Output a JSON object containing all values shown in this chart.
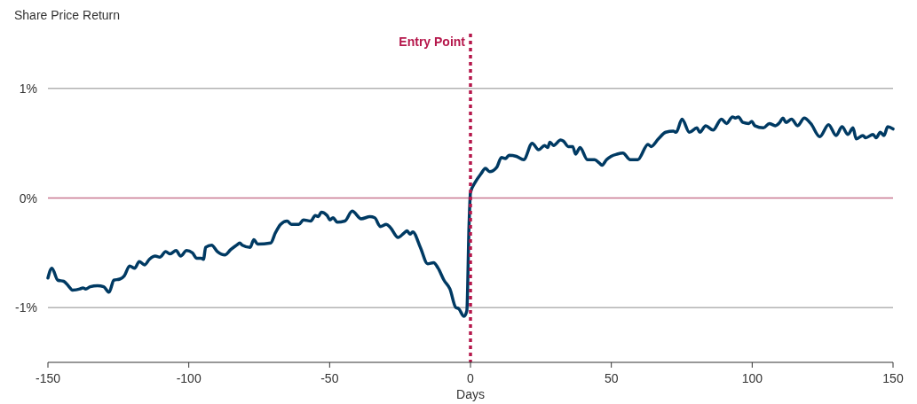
{
  "chart_data": {
    "type": "line",
    "ylabel": "Share Price Return",
    "xlabel": "Days",
    "xlim": [
      -150,
      150
    ],
    "xticks": [
      -150,
      -100,
      -50,
      0,
      50,
      100,
      150
    ],
    "ylim": [
      -1.5,
      1.5
    ],
    "yticks": [
      {
        "value": -1,
        "label": "-1%"
      },
      {
        "value": 0,
        "label": "0%"
      },
      {
        "value": 1,
        "label": "1%"
      }
    ],
    "grid": "y",
    "marker": "none",
    "line_style": "solid",
    "ref_lines": [
      {
        "axis": "x",
        "value": 0,
        "label": "Entry Point",
        "color": "#b5174b",
        "line_style": "dotted"
      },
      {
        "axis": "y",
        "value": 0,
        "label": null,
        "color": "#c87890",
        "line_style": "solid"
      }
    ],
    "series": [
      {
        "color": "#003a63",
        "x": [
          -150,
          -148.6,
          -146.5,
          -144.4,
          -142.8,
          -141.3,
          -138.7,
          -137.6,
          -136.6,
          -135,
          -132.4,
          -130.2,
          -128.3,
          -126.6,
          -124.5,
          -122.9,
          -121,
          -119.2,
          -117.6,
          -115.7,
          -114,
          -111.9,
          -110.3,
          -108.2,
          -106.6,
          -104.5,
          -102.9,
          -100.8,
          -98.7,
          -97.2,
          -95.6,
          -94.8,
          -94,
          -91.9,
          -89.8,
          -87.2,
          -85.1,
          -83,
          -81.9,
          -81,
          -78.2,
          -76.9,
          -75.6,
          -70.9,
          -69.3,
          -67.4,
          -65.1,
          -63.6,
          -60.9,
          -59.3,
          -56.7,
          -55.1,
          -54,
          -53,
          -50.9,
          -49.9,
          -48.8,
          -47.3,
          -44.6,
          -42,
          -38.8,
          -35.7,
          -34,
          -32,
          -29.9,
          -28.4,
          -25.7,
          -23.6,
          -22.5,
          -21.5,
          -20.5,
          -17.8,
          -15.2,
          -13.1,
          -11.5,
          -9.4,
          -7.3,
          -5.2,
          -4.2,
          -2.3,
          -1.3,
          -0.5,
          0,
          1.6,
          3.7,
          5.3,
          6.8,
          9.3,
          11,
          12.4,
          13.7,
          16.3,
          18.9,
          21.9,
          24.2,
          26.3,
          27.4,
          28.2,
          29.5,
          32,
          33,
          34.7,
          36.3,
          37.3,
          38.9,
          41.5,
          44.1,
          45.7,
          46.7,
          48.3,
          49.9,
          52,
          54.1,
          56.7,
          59.4,
          63,
          64.1,
          66.7,
          69.3,
          72,
          73,
          75.1,
          77.7,
          80.4,
          81.4,
          83.5,
          86.1,
          89.1,
          90.9,
          93,
          94,
          95.1,
          96.7,
          98.8,
          99.9,
          100.9,
          104,
          106.1,
          108.2,
          109.8,
          110.9,
          112,
          114,
          116.1,
          118.5,
          120.8,
          124,
          127.1,
          129.8,
          131.9,
          134,
          135.8,
          136.9,
          139.3,
          140.3,
          142.9,
          144,
          145.5,
          146.8,
          148.1,
          150
        ],
        "values": [
          -0.73,
          -0.64,
          -0.75,
          -0.76,
          -0.8,
          -0.84,
          -0.83,
          -0.82,
          -0.83,
          -0.81,
          -0.8,
          -0.81,
          -0.86,
          -0.75,
          -0.74,
          -0.71,
          -0.62,
          -0.64,
          -0.58,
          -0.61,
          -0.56,
          -0.53,
          -0.54,
          -0.49,
          -0.51,
          -0.48,
          -0.53,
          -0.48,
          -0.5,
          -0.55,
          -0.55,
          -0.56,
          -0.45,
          -0.43,
          -0.49,
          -0.52,
          -0.47,
          -0.43,
          -0.41,
          -0.43,
          -0.45,
          -0.38,
          -0.42,
          -0.41,
          -0.32,
          -0.24,
          -0.21,
          -0.24,
          -0.24,
          -0.2,
          -0.21,
          -0.16,
          -0.17,
          -0.13,
          -0.16,
          -0.2,
          -0.18,
          -0.22,
          -0.21,
          -0.12,
          -0.19,
          -0.17,
          -0.18,
          -0.26,
          -0.24,
          -0.27,
          -0.36,
          -0.32,
          -0.3,
          -0.33,
          -0.31,
          -0.45,
          -0.6,
          -0.59,
          -0.64,
          -0.75,
          -0.83,
          -1,
          -1.01,
          -1.08,
          -1.03,
          -0.24,
          0.05,
          0.14,
          0.22,
          0.27,
          0.24,
          0.28,
          0.37,
          0.36,
          0.39,
          0.38,
          0.35,
          0.5,
          0.44,
          0.48,
          0.46,
          0.51,
          0.48,
          0.53,
          0.52,
          0.47,
          0.47,
          0.4,
          0.46,
          0.35,
          0.35,
          0.32,
          0.3,
          0.35,
          0.38,
          0.4,
          0.41,
          0.35,
          0.35,
          0.49,
          0.47,
          0.54,
          0.6,
          0.61,
          0.6,
          0.72,
          0.6,
          0.64,
          0.6,
          0.66,
          0.62,
          0.72,
          0.68,
          0.74,
          0.73,
          0.74,
          0.69,
          0.68,
          0.7,
          0.66,
          0.64,
          0.68,
          0.66,
          0.69,
          0.73,
          0.69,
          0.72,
          0.66,
          0.73,
          0.68,
          0.56,
          0.67,
          0.57,
          0.65,
          0.58,
          0.64,
          0.54,
          0.57,
          0.55,
          0.58,
          0.55,
          0.6,
          0.57,
          0.65,
          0.63
        ]
      }
    ]
  }
}
